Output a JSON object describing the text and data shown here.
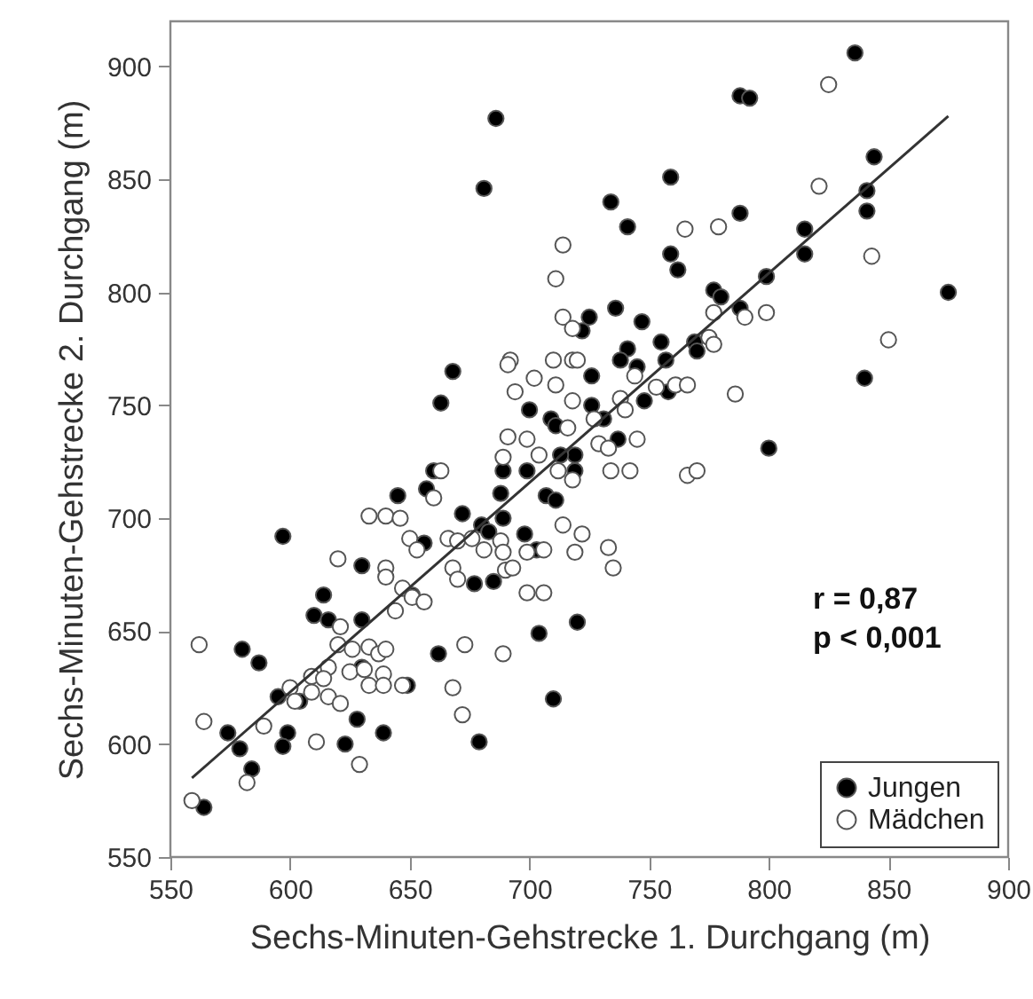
{
  "chart_data": {
    "type": "scatter",
    "xlabel": "Sechs-Minuten-Gehstrecke 1. Durchgang (m)",
    "ylabel": "Sechs-Minuten-Gehstrecke 2. Durchgang (m)",
    "xlim": [
      550,
      900
    ],
    "ylim": [
      550,
      920
    ],
    "xticks": [
      550,
      600,
      650,
      700,
      750,
      800,
      850,
      900
    ],
    "yticks": [
      550,
      600,
      650,
      700,
      750,
      800,
      850,
      900
    ],
    "grid": false,
    "legend": "bottom right",
    "marker": "circle",
    "annotations": [
      "r = 0,87",
      "p < 0,001"
    ],
    "series": [
      {
        "name": "Jungen",
        "color": "#000000",
        "x": [
          686,
          681,
          668,
          663,
          700,
          709,
          711,
          836,
          788,
          792,
          844,
          841,
          841,
          759,
          734,
          741,
          788,
          815,
          815,
          759,
          762,
          875,
          799,
          777,
          780,
          788,
          736,
          725,
          722,
          747,
          755,
          769,
          770,
          741,
          738,
          745,
          757,
          726,
          758,
          726,
          748,
          731,
          737,
          800,
          719,
          719,
          720,
          660,
          657,
          645,
          597,
          656,
          672,
          689,
          699,
          688,
          689,
          680,
          683,
          698,
          703,
          707,
          711,
          677,
          685,
          704,
          710,
          679,
          662,
          649,
          639,
          628,
          623,
          630,
          614,
          610,
          616,
          651,
          630,
          630,
          604,
          595,
          580,
          587,
          574,
          579,
          599,
          597,
          584,
          564,
          713,
          840
        ],
        "values": [
          877,
          846,
          765,
          751,
          748,
          744,
          741,
          906,
          887,
          886,
          860,
          845,
          836,
          851,
          840,
          829,
          835,
          828,
          817,
          817,
          810,
          800,
          807,
          801,
          798,
          793,
          793,
          789,
          783,
          787,
          778,
          778,
          774,
          775,
          770,
          767,
          770,
          763,
          756,
          750,
          752,
          744,
          735,
          731,
          728,
          721,
          654,
          721,
          713,
          710,
          692,
          689,
          702,
          721,
          721,
          711,
          700,
          697,
          694,
          693,
          686,
          710,
          708,
          671,
          672,
          649,
          620,
          601,
          640,
          626,
          605,
          611,
          600,
          679,
          666,
          657,
          655,
          666,
          655,
          634,
          619,
          621,
          642,
          636,
          605,
          598,
          605,
          599,
          589,
          572,
          728,
          762
        ]
      },
      {
        "name": "Mädchen",
        "color": "#ffffff",
        "x": [
          714,
          711,
          714,
          718,
          692,
          691,
          710,
          718,
          702,
          694,
          711,
          718,
          716,
          691,
          699,
          689,
          704,
          825,
          821,
          765,
          779,
          843,
          799,
          777,
          790,
          850,
          775,
          777,
          720,
          744,
          753,
          761,
          766,
          786,
          738,
          740,
          727,
          745,
          729,
          733,
          734,
          742,
          766,
          770,
          718,
          722,
          719,
          733,
          735,
          663,
          660,
          633,
          640,
          646,
          650,
          653,
          666,
          670,
          676,
          681,
          688,
          689,
          699,
          706,
          668,
          670,
          690,
          693,
          699,
          706,
          689,
          673,
          668,
          672,
          647,
          629,
          611,
          620,
          640,
          640,
          647,
          651,
          656,
          644,
          621,
          620,
          626,
          633,
          637,
          640,
          625,
          631,
          639,
          616,
          609,
          614,
          609,
          616,
          621,
          633,
          639,
          600,
          602,
          562,
          564,
          589,
          582,
          559,
          712,
          714
        ],
        "values": [
          821,
          806,
          789,
          784,
          770,
          768,
          770,
          770,
          762,
          756,
          759,
          752,
          740,
          736,
          735,
          727,
          728,
          892,
          847,
          828,
          829,
          816,
          791,
          791,
          789,
          779,
          780,
          777,
          770,
          763,
          758,
          759,
          759,
          755,
          753,
          748,
          744,
          735,
          733,
          731,
          721,
          721,
          719,
          721,
          717,
          693,
          685,
          687,
          678,
          721,
          709,
          701,
          701,
          700,
          691,
          686,
          691,
          690,
          691,
          686,
          690,
          685,
          685,
          686,
          678,
          673,
          677,
          678,
          667,
          667,
          640,
          644,
          625,
          613,
          626,
          591,
          601,
          682,
          678,
          674,
          669,
          665,
          663,
          659,
          652,
          644,
          642,
          643,
          640,
          642,
          632,
          633,
          631,
          634,
          630,
          629,
          623,
          621,
          618,
          626,
          626,
          625,
          619,
          644,
          610,
          608,
          583,
          575,
          721,
          697
        ]
      },
      {
        "type": "line",
        "marker": "none",
        "color": "#333333",
        "x": [
          559,
          875
        ],
        "values": [
          585,
          878
        ]
      }
    ]
  }
}
